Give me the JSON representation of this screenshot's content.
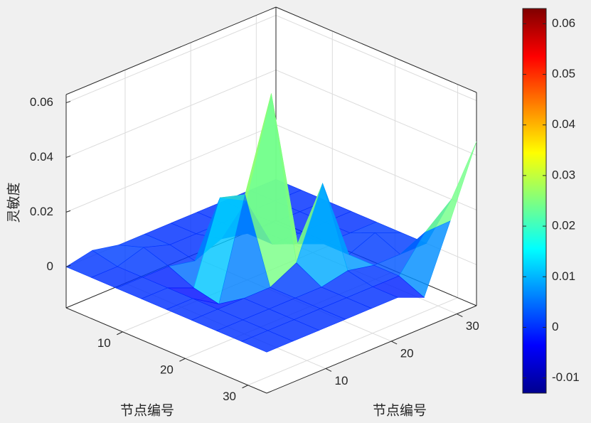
{
  "chart_data": {
    "type": "surface",
    "x": [
      1,
      5,
      9,
      13,
      17,
      21,
      25,
      29,
      33
    ],
    "y": [
      1,
      5,
      9,
      13,
      17,
      21,
      25,
      29,
      33
    ],
    "z": [
      [
        0,
        0.002,
        0,
        0,
        0,
        0,
        0,
        0,
        0
      ],
      [
        0,
        0,
        0.003,
        0,
        0,
        0,
        0,
        0,
        0
      ],
      [
        0,
        0,
        0,
        -0.002,
        0.002,
        0,
        0,
        0,
        0
      ],
      [
        0,
        0,
        -0.004,
        0.025,
        0.02,
        0,
        0,
        0,
        0
      ],
      [
        0,
        0,
        -0.006,
        0.03,
        0.063,
        0.004,
        0,
        0,
        0
      ],
      [
        0,
        0,
        0,
        0,
        0.005,
        0.03,
        0,
        0.004,
        0
      ],
      [
        0,
        0,
        0,
        0,
        0,
        0.002,
        0,
        0,
        0
      ],
      [
        0,
        0,
        0,
        0,
        0,
        0,
        0,
        0.012,
        0.02
      ],
      [
        0,
        0,
        0,
        0,
        0,
        0,
        -0.004,
        0.02,
        0.045
      ]
    ],
    "xlabel": "节点编号",
    "ylabel": "节点编号",
    "zlabel": "灵敏度",
    "xlim": [
      1,
      33
    ],
    "ylim": [
      1,
      33
    ],
    "zlim": [
      -0.015,
      0.063
    ],
    "xticks": [
      10,
      20,
      30
    ],
    "yticks": [
      10,
      20,
      30
    ],
    "zticks": [
      0,
      0.02,
      0.04,
      0.06
    ],
    "colormap": "jet",
    "clim": [
      -0.013,
      0.063
    ],
    "colorbar_ticks": [
      -0.01,
      0,
      0.01,
      0.02,
      0.03,
      0.04,
      0.05,
      0.06
    ],
    "grid": true
  }
}
